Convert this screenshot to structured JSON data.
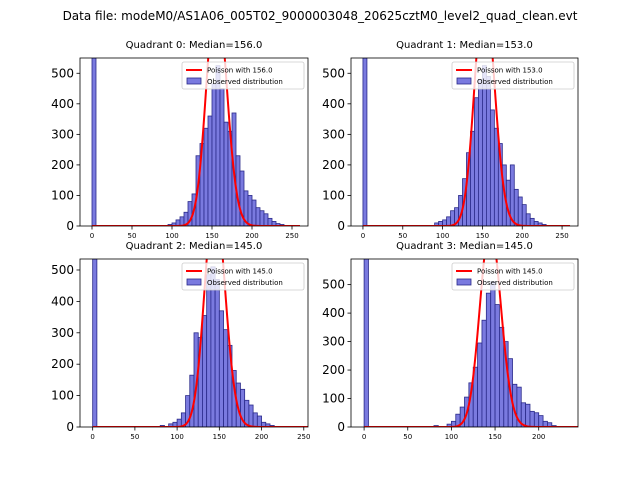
{
  "figure_title": "Data file: modeM0/AS1A06_005T02_9000003048_20625cztM0_level2_quad_clean.evt",
  "colors": {
    "bar_fill": "#7a7adf",
    "bar_edge": "#2a2a8a",
    "poisson": "#ff0000",
    "axis": "#000000"
  },
  "chart_data": [
    {
      "type": "bar",
      "title": "Quadrant 0: Median=156.0",
      "legend": {
        "poisson_label": "Poisson with 156.0",
        "observed_label": "Observed distribution",
        "placement": "top-right"
      },
      "xlim": [
        -15,
        270
      ],
      "ylim": [
        0,
        550
      ],
      "xticks": [
        0,
        50,
        100,
        150,
        200,
        250
      ],
      "yticks": [
        0,
        100,
        200,
        300,
        400,
        500
      ],
      "bin_width": 5,
      "bins": [
        [
          0,
          550
        ],
        [
          95,
          5
        ],
        [
          100,
          10
        ],
        [
          105,
          20
        ],
        [
          110,
          30
        ],
        [
          115,
          45
        ],
        [
          120,
          80
        ],
        [
          125,
          105
        ],
        [
          130,
          230
        ],
        [
          135,
          270
        ],
        [
          140,
          320
        ],
        [
          145,
          360
        ],
        [
          150,
          465
        ],
        [
          155,
          525
        ],
        [
          160,
          450
        ],
        [
          165,
          340
        ],
        [
          170,
          310
        ],
        [
          175,
          370
        ],
        [
          180,
          230
        ],
        [
          185,
          180
        ],
        [
          190,
          115
        ],
        [
          195,
          100
        ],
        [
          200,
          85
        ],
        [
          205,
          60
        ],
        [
          210,
          50
        ],
        [
          215,
          40
        ],
        [
          220,
          25
        ],
        [
          225,
          15
        ],
        [
          230,
          8
        ],
        [
          235,
          5
        ]
      ],
      "poisson_mean": 156.0
    },
    {
      "type": "bar",
      "title": "Quadrant 1: Median=153.0",
      "legend": {
        "poisson_label": "Poisson with 153.0",
        "observed_label": "Observed distribution",
        "placement": "top-right"
      },
      "xlim": [
        -15,
        270
      ],
      "ylim": [
        0,
        550
      ],
      "xticks": [
        0,
        50,
        100,
        150,
        200,
        250
      ],
      "yticks": [
        0,
        100,
        200,
        300,
        400,
        500
      ],
      "bin_width": 5,
      "bins": [
        [
          0,
          550
        ],
        [
          90,
          10
        ],
        [
          95,
          15
        ],
        [
          100,
          20
        ],
        [
          105,
          30
        ],
        [
          110,
          50
        ],
        [
          115,
          60
        ],
        [
          120,
          100
        ],
        [
          125,
          155
        ],
        [
          130,
          240
        ],
        [
          135,
          310
        ],
        [
          140,
          420
        ],
        [
          145,
          480
        ],
        [
          150,
          525
        ],
        [
          155,
          490
        ],
        [
          160,
          380
        ],
        [
          165,
          320
        ],
        [
          170,
          270
        ],
        [
          175,
          200
        ],
        [
          180,
          150
        ],
        [
          185,
          200
        ],
        [
          190,
          120
        ],
        [
          195,
          95
        ],
        [
          200,
          70
        ],
        [
          205,
          40
        ],
        [
          210,
          25
        ],
        [
          215,
          15
        ],
        [
          220,
          10
        ],
        [
          225,
          5
        ]
      ],
      "poisson_mean": 153.0
    },
    {
      "type": "bar",
      "title": "Quadrant 2: Median=145.0",
      "legend": {
        "poisson_label": "Poisson with 145.0",
        "observed_label": "Observed distribution",
        "placement": "top-right"
      },
      "xlim": [
        -15,
        255
      ],
      "ylim": [
        0,
        535
      ],
      "xticks": [
        0,
        50,
        100,
        150,
        200,
        250
      ],
      "yticks": [
        0,
        100,
        200,
        300,
        400,
        500
      ],
      "bin_width": 5,
      "bins": [
        [
          0,
          535
        ],
        [
          80,
          5
        ],
        [
          90,
          10
        ],
        [
          95,
          15
        ],
        [
          100,
          25
        ],
        [
          105,
          45
        ],
        [
          110,
          100
        ],
        [
          115,
          165
        ],
        [
          120,
          300
        ],
        [
          125,
          285
        ],
        [
          130,
          355
        ],
        [
          135,
          485
        ],
        [
          140,
          510
        ],
        [
          145,
          470
        ],
        [
          150,
          370
        ],
        [
          155,
          310
        ],
        [
          160,
          260
        ],
        [
          165,
          180
        ],
        [
          170,
          140
        ],
        [
          175,
          120
        ],
        [
          180,
          85
        ],
        [
          185,
          70
        ],
        [
          190,
          45
        ],
        [
          195,
          35
        ],
        [
          200,
          15
        ],
        [
          205,
          10
        ],
        [
          210,
          5
        ]
      ],
      "poisson_mean": 145.0
    },
    {
      "type": "bar",
      "title": "Quadrant 3: Median=145.0",
      "legend": {
        "poisson_label": "Poisson with 145.0",
        "observed_label": "Observed distribution",
        "placement": "top-right"
      },
      "xlim": [
        -15,
        245
      ],
      "ylim": [
        0,
        590
      ],
      "xticks": [
        0,
        50,
        100,
        150,
        200
      ],
      "yticks": [
        0,
        100,
        200,
        300,
        400,
        500
      ],
      "bin_width": 5,
      "bins": [
        [
          0,
          590
        ],
        [
          80,
          5
        ],
        [
          95,
          10
        ],
        [
          100,
          20
        ],
        [
          105,
          45
        ],
        [
          110,
          70
        ],
        [
          115,
          105
        ],
        [
          120,
          155
        ],
        [
          125,
          210
        ],
        [
          130,
          295
        ],
        [
          135,
          375
        ],
        [
          140,
          470
        ],
        [
          145,
          510
        ],
        [
          150,
          430
        ],
        [
          155,
          350
        ],
        [
          160,
          300
        ],
        [
          165,
          240
        ],
        [
          170,
          150
        ],
        [
          175,
          140
        ],
        [
          180,
          85
        ],
        [
          185,
          80
        ],
        [
          190,
          55
        ],
        [
          195,
          50
        ],
        [
          200,
          40
        ],
        [
          205,
          20
        ],
        [
          210,
          15
        ],
        [
          215,
          5
        ]
      ],
      "poisson_mean": 145.0
    }
  ]
}
